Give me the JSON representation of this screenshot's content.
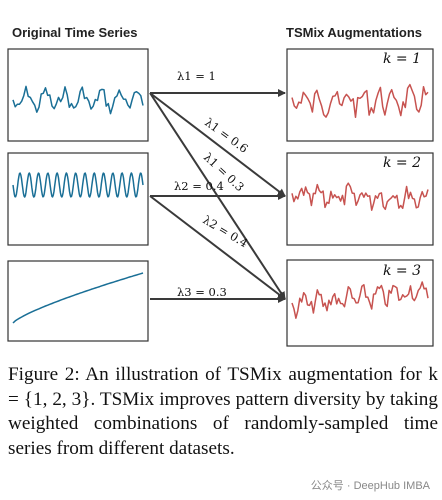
{
  "figure": {
    "left_heading": "Original Time Series",
    "right_heading": "TSMix Augmentations",
    "k_labels": [
      "k = 1",
      "k = 2",
      "k = 3"
    ],
    "arrows": [
      {
        "from": 0,
        "to": 0,
        "label": "λ1 = 1"
      },
      {
        "from": 0,
        "to": 1,
        "label": "λ1 = 0.6"
      },
      {
        "from": 0,
        "to": 2,
        "label": "λ1 = 0.3"
      },
      {
        "from": 1,
        "to": 1,
        "label": "λ2 = 0.4"
      },
      {
        "from": 1,
        "to": 2,
        "label": "λ2 = 0.4"
      },
      {
        "from": 2,
        "to": 2,
        "label": "λ3 = 0.3"
      }
    ],
    "colors": {
      "original": "#1a6f96",
      "augmented": "#c75350",
      "arrow": "#3a3a3a",
      "frame": "#333333"
    }
  },
  "caption": "Figure 2: An illustration of TSMix augmentation for k = {1, 2, 3}. TSMix improves pattern diversity by taking weighted combinations of randomly-sampled time series from different datasets.",
  "watermark": "公众号 · DeepHub IMBA"
}
